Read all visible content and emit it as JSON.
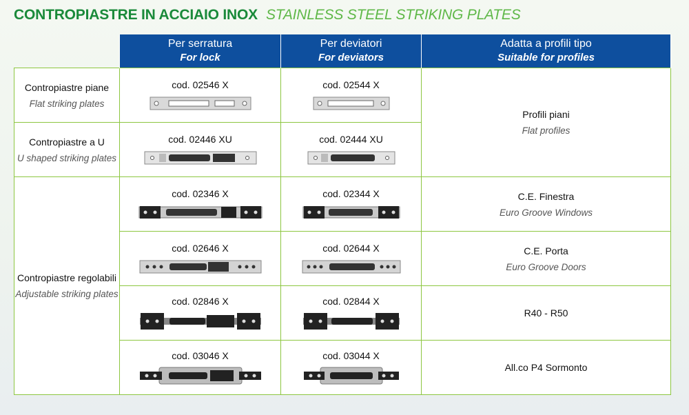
{
  "title": {
    "it": "CONTROPIASTRE IN ACCIAIO INOX",
    "en": "STAINLESS STEEL STRIKING PLATES"
  },
  "headers": {
    "lock": {
      "it": "Per serratura",
      "en": "For lock"
    },
    "deviators": {
      "it": "Per deviatori",
      "en": "For deviators"
    },
    "profiles": {
      "it": "Adatta a profili tipo",
      "en": "Suitable for profiles"
    }
  },
  "groups": [
    {
      "it": "Contropiastre piane",
      "en": "Flat striking plates"
    },
    {
      "it": "Contropiastre a U",
      "en": "U shaped striking plates"
    },
    {
      "it": "Contropiastre regolabili",
      "en": "Adjustable striking plates"
    }
  ],
  "rows": [
    {
      "lock": "cod. 02546 X",
      "dev": "cod. 02544 X"
    },
    {
      "lock": "cod. 02446 XU",
      "dev": "cod. 02444 XU"
    },
    {
      "lock": "cod. 02346 X",
      "dev": "cod. 02344 X"
    },
    {
      "lock": "cod. 02646 X",
      "dev": "cod. 02644 X"
    },
    {
      "lock": "cod. 02846 X",
      "dev": "cod. 02844 X"
    },
    {
      "lock": "cod. 03046 X",
      "dev": "cod. 03044 X"
    }
  ],
  "profiles": [
    {
      "it": "Profili piani",
      "en": "Flat profiles"
    },
    {
      "it": "C.E. Finestra",
      "en": "Euro Groove Windows"
    },
    {
      "it": "C.E. Porta",
      "en": "Euro Groove Doors"
    },
    {
      "it": "R40 - R50",
      "en": ""
    },
    {
      "it": "All.co P4 Sormonto",
      "en": ""
    }
  ]
}
